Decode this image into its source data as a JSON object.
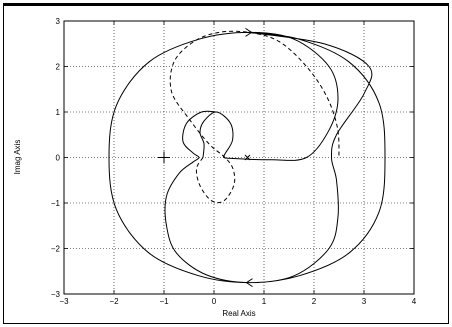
{
  "chart_data": {
    "type": "line",
    "title": "",
    "xlabel": "Real Axis",
    "ylabel": "Imag Axis",
    "xlim": [
      -3,
      4
    ],
    "ylim": [
      -3,
      3
    ],
    "xticks": [
      -3,
      -2,
      -1,
      0,
      1,
      2,
      3,
      4
    ],
    "yticks": [
      -3,
      -2,
      -1,
      0,
      1,
      2,
      3
    ],
    "xtick_labels": [
      "−3",
      "−2",
      "−1",
      "0",
      "1",
      "2",
      "3",
      "4"
    ],
    "ytick_labels": [
      "−3",
      "−2",
      "−1",
      "0",
      "1",
      "2",
      "3"
    ],
    "grid": true,
    "series": [
      {
        "style": "solid",
        "points": [
          [
            -0.22,
            0.0
          ],
          [
            -0.2,
            0.3
          ],
          [
            -0.28,
            0.55
          ],
          [
            -0.2,
            0.8
          ],
          [
            0.05,
            1.0
          ],
          [
            0.33,
            0.75
          ],
          [
            0.37,
            0.38
          ],
          [
            0.22,
            0.08
          ],
          [
            0.2,
            0.0
          ],
          [
            0.35,
            -0.02
          ],
          [
            1.15,
            -0.05
          ],
          [
            1.85,
            0.0
          ],
          [
            2.3,
            0.6
          ],
          [
            2.48,
            1.3
          ],
          [
            2.3,
            2.0
          ],
          [
            1.6,
            2.6
          ],
          [
            0.7,
            2.75
          ],
          [
            -0.3,
            2.6
          ],
          [
            -1.3,
            2.1
          ],
          [
            -1.95,
            1.15
          ],
          [
            -2.1,
            0.0
          ],
          [
            -1.95,
            -1.15
          ],
          [
            -1.3,
            -2.1
          ],
          [
            -0.3,
            -2.6
          ],
          [
            0.7,
            -2.75
          ],
          [
            1.6,
            -2.6
          ],
          [
            2.3,
            -2.0
          ],
          [
            2.48,
            -1.3
          ],
          [
            2.45,
            -0.5
          ],
          [
            2.35,
            0.0
          ],
          [
            2.45,
            0.5
          ],
          [
            3.0,
            1.4
          ],
          [
            3.1,
            2.0
          ],
          [
            2.2,
            2.5
          ],
          [
            0.7,
            2.75
          ],
          [
            1.7,
            2.6
          ],
          [
            2.7,
            2.1
          ],
          [
            3.3,
            1.2
          ],
          [
            3.42,
            0.0
          ],
          [
            3.3,
            -1.2
          ],
          [
            2.7,
            -2.1
          ],
          [
            1.7,
            -2.6
          ],
          [
            0.7,
            -2.75
          ],
          [
            -0.15,
            -2.58
          ],
          [
            -0.75,
            -2.1
          ],
          [
            -0.95,
            -1.5
          ],
          [
            -0.95,
            -0.85
          ],
          [
            -0.7,
            -0.35
          ],
          [
            -0.42,
            -0.1
          ],
          [
            -0.3,
            0.0
          ],
          [
            -0.42,
            0.1
          ],
          [
            -0.62,
            0.35
          ],
          [
            -0.55,
            0.75
          ],
          [
            -0.25,
            1.0
          ],
          [
            0.05,
            1.0
          ]
        ]
      },
      {
        "style": "dashed",
        "points": [
          [
            -0.22,
            0.0
          ],
          [
            -0.35,
            -0.25
          ],
          [
            -0.28,
            -0.62
          ],
          [
            -0.05,
            -0.95
          ],
          [
            0.2,
            -0.95
          ],
          [
            0.4,
            -0.6
          ],
          [
            0.38,
            -0.25
          ],
          [
            0.22,
            0.0
          ],
          [
            -0.1,
            0.3
          ],
          [
            -0.5,
            0.85
          ],
          [
            -0.85,
            1.45
          ],
          [
            -0.8,
            2.1
          ],
          [
            -0.4,
            2.55
          ],
          [
            0.1,
            2.75
          ],
          [
            0.7,
            2.75
          ],
          [
            1.3,
            2.55
          ],
          [
            1.85,
            2.0
          ],
          [
            2.25,
            1.35
          ],
          [
            2.47,
            0.65
          ],
          [
            2.5,
            0.0
          ]
        ]
      }
    ],
    "markers": [
      {
        "symbol": "plus",
        "x": -1.0,
        "y": 0.0
      },
      {
        "symbol": "cross",
        "x": 0.67,
        "y": 0.0
      }
    ],
    "arrows": [
      {
        "x": 0.75,
        "y": 2.75,
        "direction": "right"
      },
      {
        "x": 0.65,
        "y": -2.75,
        "direction": "left"
      }
    ]
  }
}
